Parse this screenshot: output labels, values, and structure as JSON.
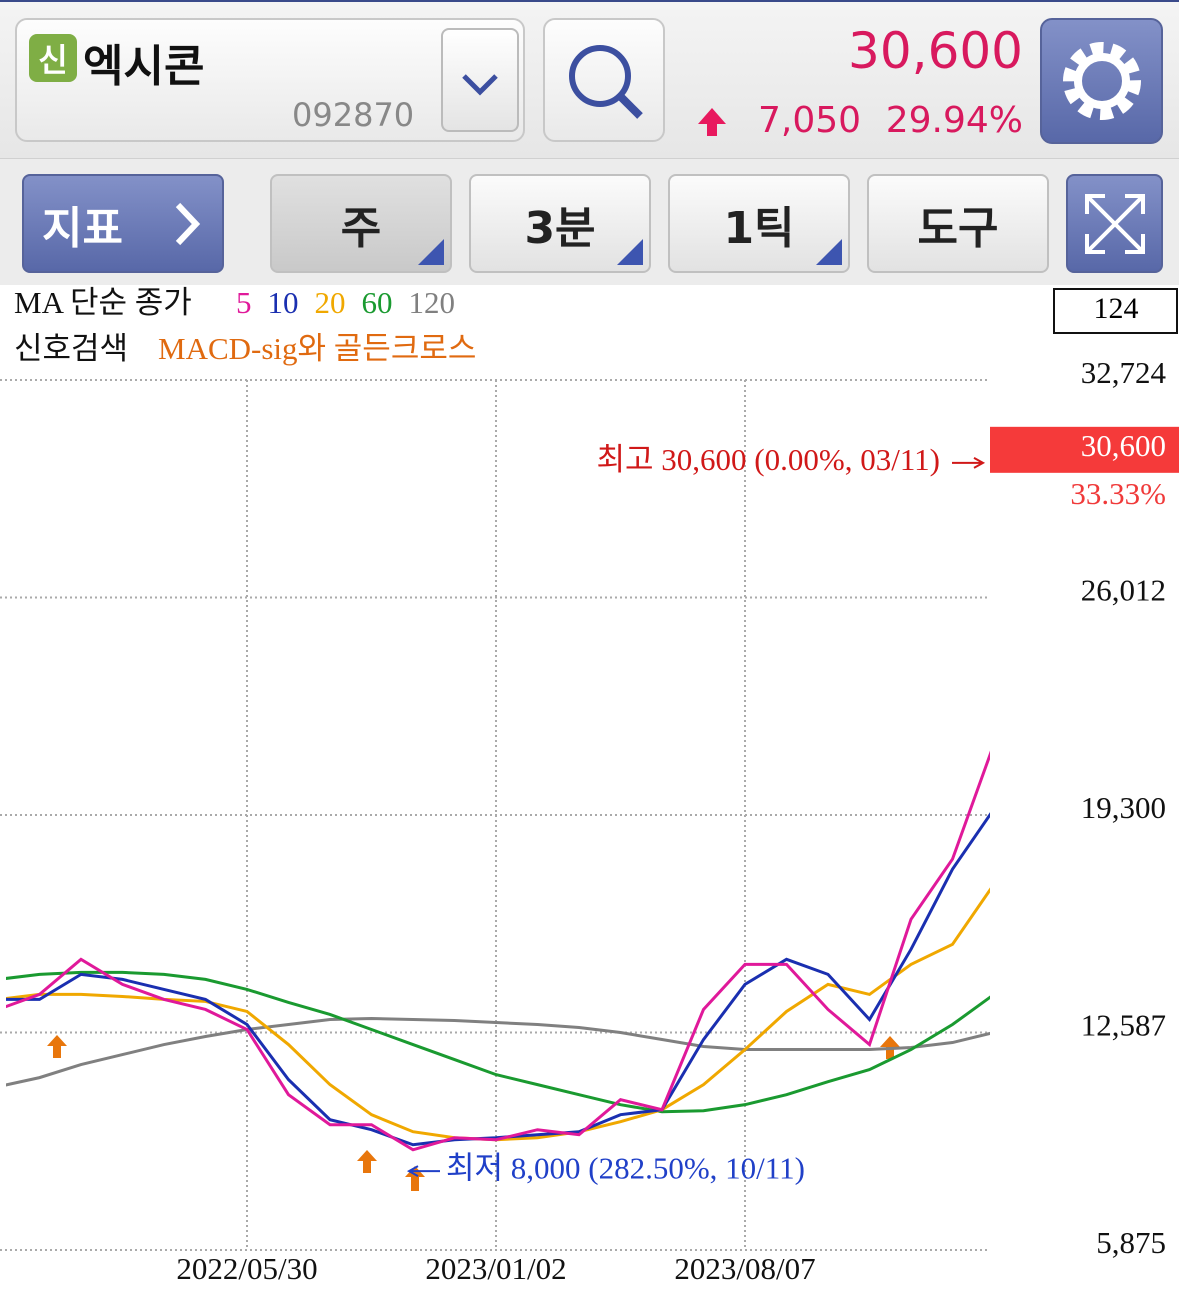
{
  "header": {
    "badge": "신",
    "name": "엑시콘",
    "code": "092870",
    "price": "30,600",
    "change": "7,050",
    "change_pct": "29.94%"
  },
  "toolbar": {
    "indicator": "지표",
    "period": "주",
    "minute": "3분",
    "tick": "1틱",
    "tools": "도구"
  },
  "legend": {
    "ma_label": "MA 단순 종가",
    "signal_label": "신호검색",
    "signal": "MACD-sig와 골든크로스",
    "count": "124"
  },
  "chart_data": {
    "type": "line",
    "categories": [
      null,
      null,
      null,
      null,
      null,
      null,
      "2022/05/30",
      null,
      null,
      null,
      null,
      null,
      "2023/01/02",
      null,
      null,
      null,
      null,
      null,
      "2023/08/07",
      null,
      null,
      null,
      null,
      null,
      null
    ],
    "series": [
      {
        "name": "5",
        "color": "#e0199a",
        "values": [
          13298,
          13762,
          14845,
          14072,
          13608,
          13298,
          12680,
          10669,
          9741,
          9741,
          8968,
          9339,
          9277,
          9587,
          9432,
          10514,
          10205,
          13298,
          14690,
          14690,
          13298,
          12216,
          16082,
          17938,
          21495
        ]
      },
      {
        "name": "10",
        "color": "#1a2fb0",
        "values": [
          13608,
          13608,
          14381,
          14226,
          13917,
          13608,
          12834,
          11133,
          9896,
          9587,
          9123,
          9277,
          9339,
          9432,
          9525,
          10051,
          10205,
          12370,
          14072,
          14845,
          14381,
          12989,
          15154,
          17629,
          19485
        ]
      },
      {
        "name": "20",
        "color": "#f0a800",
        "values": [
          13608,
          13762,
          13762,
          13700,
          13608,
          13546,
          13236,
          12216,
          10978,
          10051,
          9525,
          9339,
          9277,
          9339,
          9525,
          9834,
          10205,
          10978,
          12061,
          13236,
          14072,
          13762,
          14690,
          15309,
          17165
        ]
      },
      {
        "name": "60",
        "color": "#1a9a30",
        "values": [
          14226,
          14381,
          14443,
          14443,
          14381,
          14226,
          13917,
          13515,
          13144,
          12680,
          12216,
          11752,
          11288,
          10978,
          10669,
          10360,
          10143,
          10174,
          10360,
          10669,
          11071,
          11442,
          12061,
          12834,
          13762
        ]
      },
      {
        "name": "120",
        "color": "#808080",
        "values": [
          10916,
          11195,
          11597,
          11906,
          12216,
          12463,
          12680,
          12834,
          12989,
          13020,
          12989,
          12958,
          12896,
          12834,
          12742,
          12587,
          12370,
          12154,
          12061,
          12061,
          12061,
          12061,
          12123,
          12278,
          12587
        ]
      }
    ],
    "ylim": [
      5875,
      32724
    ],
    "yticks": [
      {
        "value": 5875,
        "label": "5,875"
      },
      {
        "value": 12587,
        "label": "12,587"
      },
      {
        "value": 19300,
        "label": "19,300"
      },
      {
        "value": 26012,
        "label": "26,012"
      },
      {
        "value": 32724,
        "label": "32,724"
      }
    ],
    "grid": true,
    "price_tag": {
      "value": 30600,
      "label": "30,600",
      "change_label": "33.33%"
    },
    "high": {
      "value": 30600,
      "label": "최고 30,600 (0.00%, 03/11)"
    },
    "low": {
      "value": 8000,
      "label": "최저 8,000 (282.50%, 10/11)"
    }
  }
}
